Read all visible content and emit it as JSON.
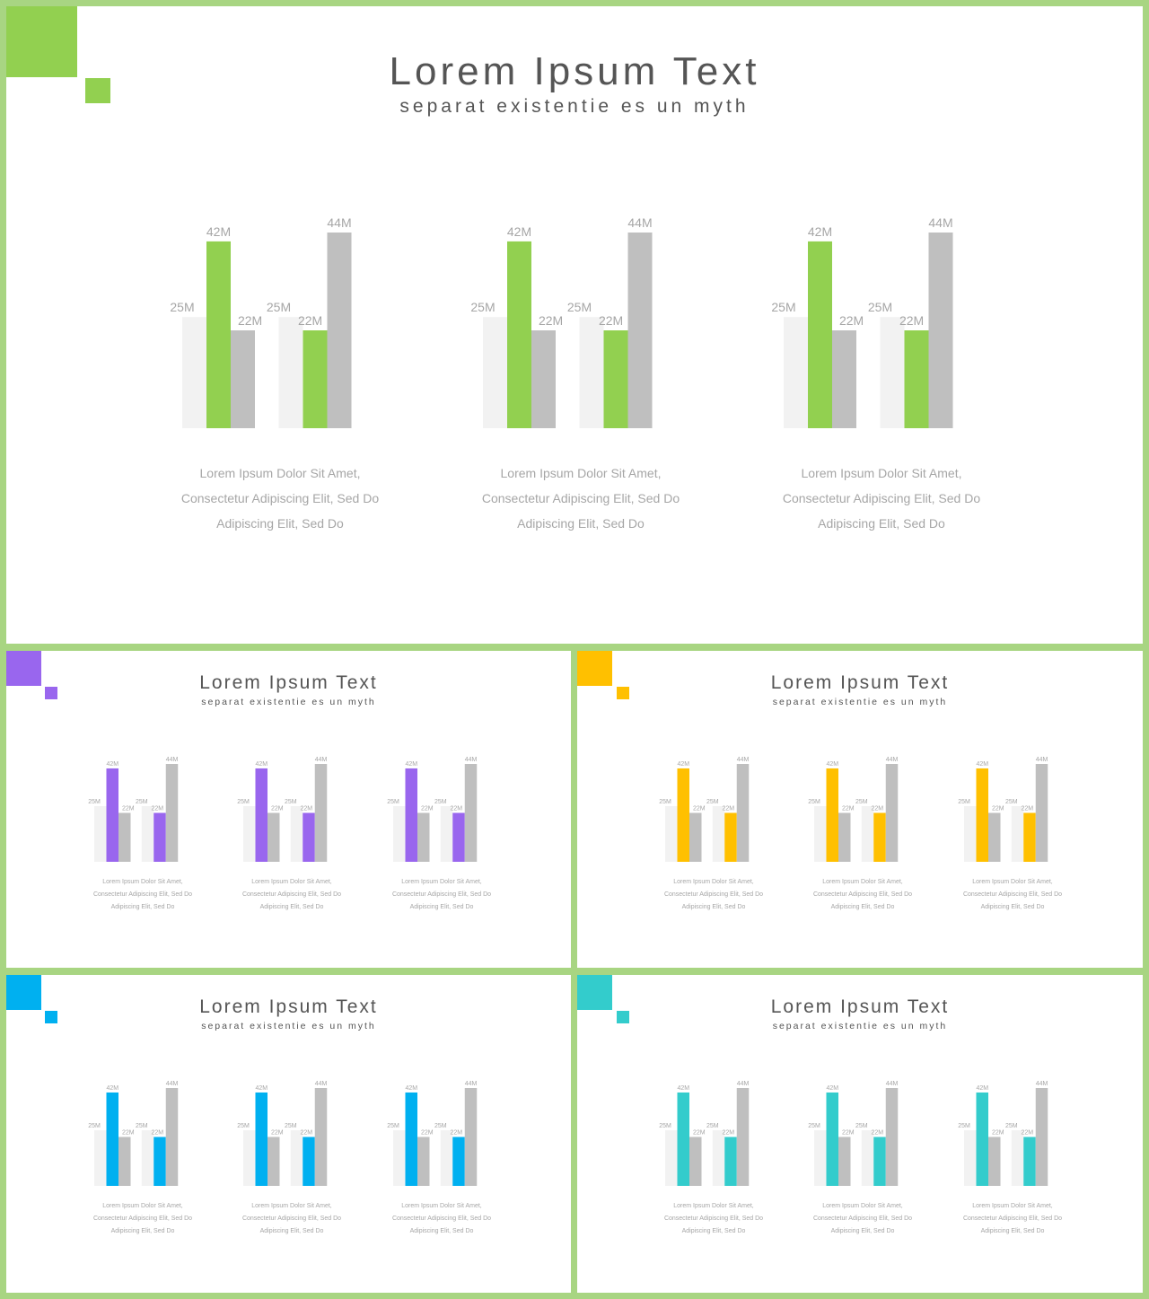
{
  "slides": [
    {
      "id": "main",
      "title": "Lorem Ipsum Text",
      "subtitle": "separat existentie es un myth",
      "accent": "#92d050",
      "deco_color": "#92d050",
      "groups": [
        {
          "caption": [
            "Lorem Ipsum Dolor Sit Amet,",
            "Consectetur Adipiscing Elit, Sed Do",
            "Adipiscing Elit, Sed Do"
          ]
        },
        {
          "caption": [
            "Lorem Ipsum Dolor Sit Amet,",
            "Consectetur Adipiscing Elit, Sed Do",
            "Adipiscing Elit, Sed Do"
          ]
        },
        {
          "caption": [
            "Lorem Ipsum Dolor Sit Amet,",
            "Consectetur Adipiscing Elit, Sed Do",
            "Adipiscing Elit, Sed Do"
          ]
        }
      ]
    },
    {
      "id": "purple",
      "title": "Lorem Ipsum Text",
      "subtitle": "separat existentie es un myth",
      "accent": "#9966ee",
      "deco_color": "#9966ee",
      "groups": [
        {
          "caption": [
            "Lorem Ipsum Dolor Sit Amet,",
            "Consectetur Adipiscing Elit, Sed Do",
            "Adipiscing Elit, Sed Do"
          ]
        },
        {
          "caption": [
            "Lorem Ipsum Dolor Sit Amet,",
            "Consectetur Adipiscing Elit, Sed Do",
            "Adipiscing Elit, Sed Do"
          ]
        },
        {
          "caption": [
            "Lorem Ipsum Dolor Sit Amet,",
            "Consectetur Adipiscing Elit, Sed Do",
            "Adipiscing Elit, Sed Do"
          ]
        }
      ]
    },
    {
      "id": "orange",
      "title": "Lorem Ipsum Text",
      "subtitle": "separat existentie es un myth",
      "accent": "#ffc000",
      "deco_color": "#ffc000",
      "groups": [
        {
          "caption": [
            "Lorem Ipsum Dolor Sit Amet,",
            "Consectetur Adipiscing Elit, Sed Do",
            "Adipiscing Elit, Sed Do"
          ]
        },
        {
          "caption": [
            "Lorem Ipsum Dolor Sit Amet,",
            "Consectetur Adipiscing Elit, Sed Do",
            "Adipiscing Elit, Sed Do"
          ]
        },
        {
          "caption": [
            "Lorem Ipsum Dolor Sit Amet,",
            "Consectetur Adipiscing Elit, Sed Do",
            "Adipiscing Elit, Sed Do"
          ]
        }
      ]
    },
    {
      "id": "blue",
      "title": "Lorem Ipsum Text",
      "subtitle": "separat existentie es un myth",
      "accent": "#00b0f0",
      "deco_color": "#00b0f0",
      "groups": [
        {
          "caption": [
            "Lorem Ipsum Dolor Sit Amet,",
            "Consectetur Adipiscing Elit, Sed Do",
            "Adipiscing Elit, Sed Do"
          ]
        },
        {
          "caption": [
            "Lorem Ipsum Dolor Sit Amet,",
            "Consectetur Adipiscing Elit, Sed Do",
            "Adipiscing Elit, Sed Do"
          ]
        },
        {
          "caption": [
            "Lorem Ipsum Dolor Sit Amet,",
            "Consectetur Adipiscing Elit, Sed Do",
            "Adipiscing Elit, Sed Do"
          ]
        }
      ]
    },
    {
      "id": "teal",
      "title": "Lorem Ipsum Text",
      "subtitle": "separat existentie es un myth",
      "accent": "#33cccc",
      "deco_color": "#33cccc",
      "groups": [
        {
          "caption": [
            "Lorem Ipsum Dolor Sit Amet,",
            "Consectetur Adipiscing Elit, Sed Do",
            "Adipiscing Elit, Sed Do"
          ]
        },
        {
          "caption": [
            "Lorem Ipsum Dolor Sit Amet,",
            "Consectetur Adipiscing Elit, Sed Do",
            "Adipiscing Elit, Sed Do"
          ]
        },
        {
          "caption": [
            "Lorem Ipsum Dolor Sit Amet,",
            "Consectetur Adipiscing Elit, Sed Do",
            "Adipiscing Elit, Sed Do"
          ]
        }
      ]
    }
  ],
  "colors": {
    "frame": "#a8d582",
    "light_bar": "#f2f2f2",
    "gray_bar": "#bfbfbf",
    "label": "#a6a6a6",
    "text": "#555555"
  },
  "chart_data": {
    "type": "bar",
    "clusters": [
      {
        "values": [
          25,
          42,
          22
        ],
        "labels": [
          "25M",
          "42M",
          "22M"
        ],
        "roles": [
          "light",
          "accent",
          "gray"
        ]
      },
      {
        "values": [
          25,
          22,
          44
        ],
        "labels": [
          "25M",
          "22M",
          "44M"
        ],
        "roles": [
          "light",
          "accent",
          "gray"
        ]
      }
    ],
    "ylim": [
      0,
      44
    ]
  }
}
